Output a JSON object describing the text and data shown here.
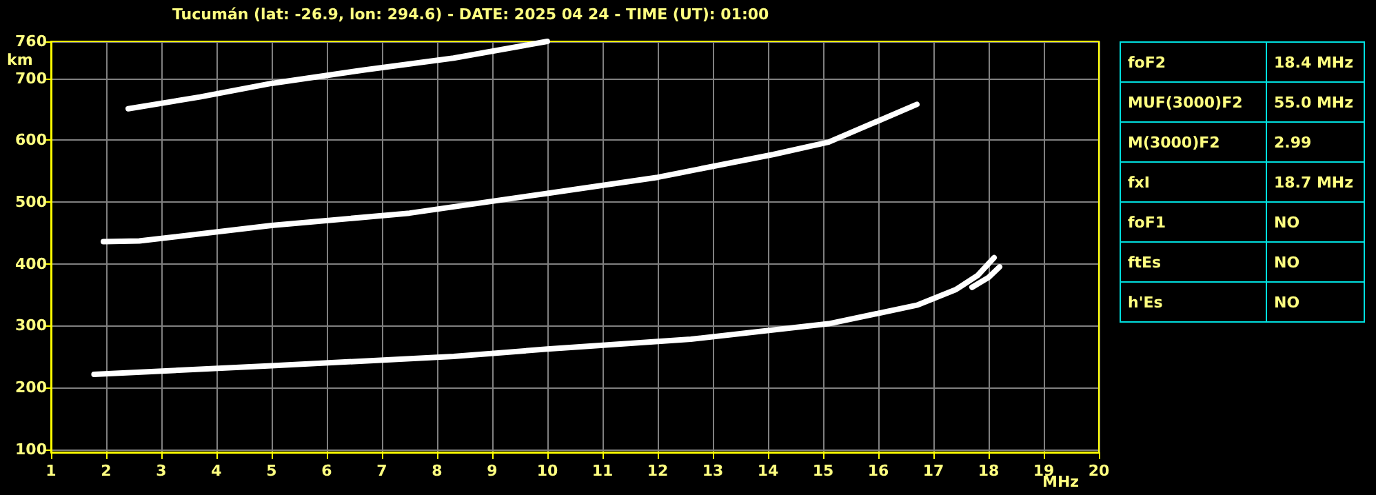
{
  "chart_data": {
    "type": "line",
    "title": "Tucumán (lat: -26.9, lon: 294.6) - DATE: 2025 04 24 - TIME (UT): 01:00",
    "xlabel": "MHz",
    "ylabel": "km",
    "xlim": [
      1,
      20
    ],
    "xticks": [
      1,
      2,
      3,
      4,
      5,
      6,
      7,
      8,
      9,
      10,
      11,
      12,
      13,
      14,
      15,
      16,
      17,
      18,
      19,
      20
    ],
    "ylim": [
      95,
      760
    ],
    "yticks": [
      100,
      200,
      300,
      400,
      500,
      600,
      700,
      760
    ],
    "grid": true,
    "marker": "none",
    "line_style": "solid",
    "series": [
      {
        "color": "#ffffff",
        "x": [
          1.78,
          5.0,
          8.3,
          10.0,
          12.6,
          15.1,
          16.7,
          17.4,
          17.8,
          18.1
        ],
        "values": [
          221,
          235,
          250,
          262,
          278,
          303,
          333,
          358,
          381,
          410
        ]
      },
      {
        "color": "#ffffff",
        "x": [
          17.7,
          18.0,
          18.2
        ],
        "values": [
          362,
          378,
          395
        ]
      },
      {
        "color": "#ffffff",
        "x": [
          1.95,
          2.6,
          5.0,
          7.5,
          10.0,
          12.0,
          14.1,
          15.1,
          16.7
        ],
        "values": [
          436,
          437,
          462,
          482,
          514,
          540,
          577,
          597,
          658
        ]
      },
      {
        "color": "#ffffff",
        "x": [
          2.4,
          3.7,
          5.0,
          6.7,
          8.3,
          10.0
        ],
        "values": [
          651,
          670,
          692,
          714,
          733,
          760
        ]
      }
    ],
    "annotations": [
      "foF2",
      "18.4 MHz",
      "MUF(3000)F2",
      "55.0 MHz",
      "M(3000)F2",
      "2.99",
      "fxI",
      "18.7 MHz",
      "foF1",
      "NO",
      "ftEs",
      "NO",
      "h'Es",
      "NO"
    ]
  }
}
